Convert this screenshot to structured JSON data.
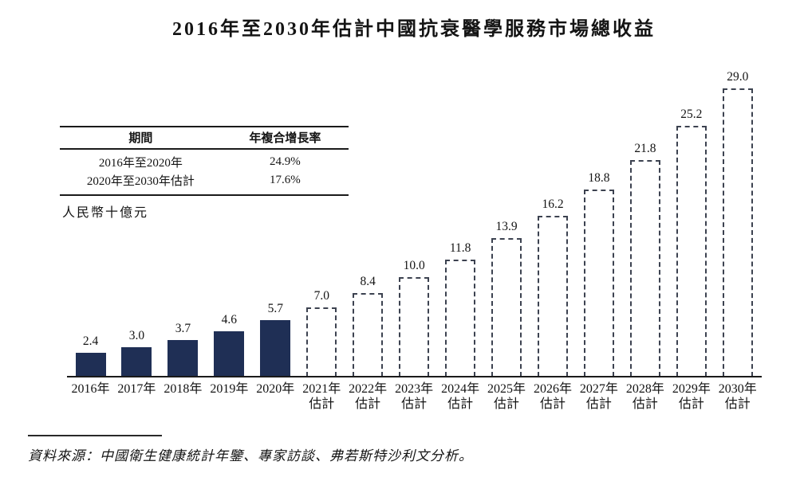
{
  "page": {
    "source_note": "資料來源：中國衛生健康統計年鑒、專家訪談、弗若斯特沙利文分析。"
  },
  "chart_data": {
    "type": "bar",
    "title": "2016年至2030年估計中國抗衰醫學服務市場總收益",
    "ylabel": "人民幣十億元",
    "xlabel": "",
    "categories": [
      "2016年",
      "2017年",
      "2018年",
      "2019年",
      "2020年",
      "2021年",
      "2022年",
      "2023年",
      "2024年",
      "2025年",
      "2026年",
      "2027年",
      "2028年",
      "2029年",
      "2030年"
    ],
    "values": [
      2.4,
      3.0,
      3.7,
      4.6,
      5.7,
      7.0,
      8.4,
      10.0,
      11.8,
      13.9,
      16.2,
      18.8,
      21.8,
      25.2,
      29.0
    ],
    "value_labels": [
      "2.4",
      "3.0",
      "3.7",
      "4.6",
      "5.7",
      "7.0",
      "8.4",
      "10.0",
      "11.8",
      "13.9",
      "16.2",
      "18.8",
      "21.8",
      "25.2",
      "29.0"
    ],
    "estimated": [
      false,
      false,
      false,
      false,
      false,
      true,
      true,
      true,
      true,
      true,
      true,
      true,
      true,
      true,
      true
    ],
    "estimate_label": "估計",
    "ylim": [
      0,
      30
    ],
    "grid": false,
    "legend": "none",
    "bar_solid_color": "#1f2f55",
    "bar_dashed_border_color": "#3c4250",
    "annotation_table": {
      "headers": [
        "期間",
        "年複合增長率"
      ],
      "rows": [
        [
          "2016年至2020年",
          "24.9%"
        ],
        [
          "2020年至2030年估計",
          "17.6%"
        ]
      ]
    }
  }
}
